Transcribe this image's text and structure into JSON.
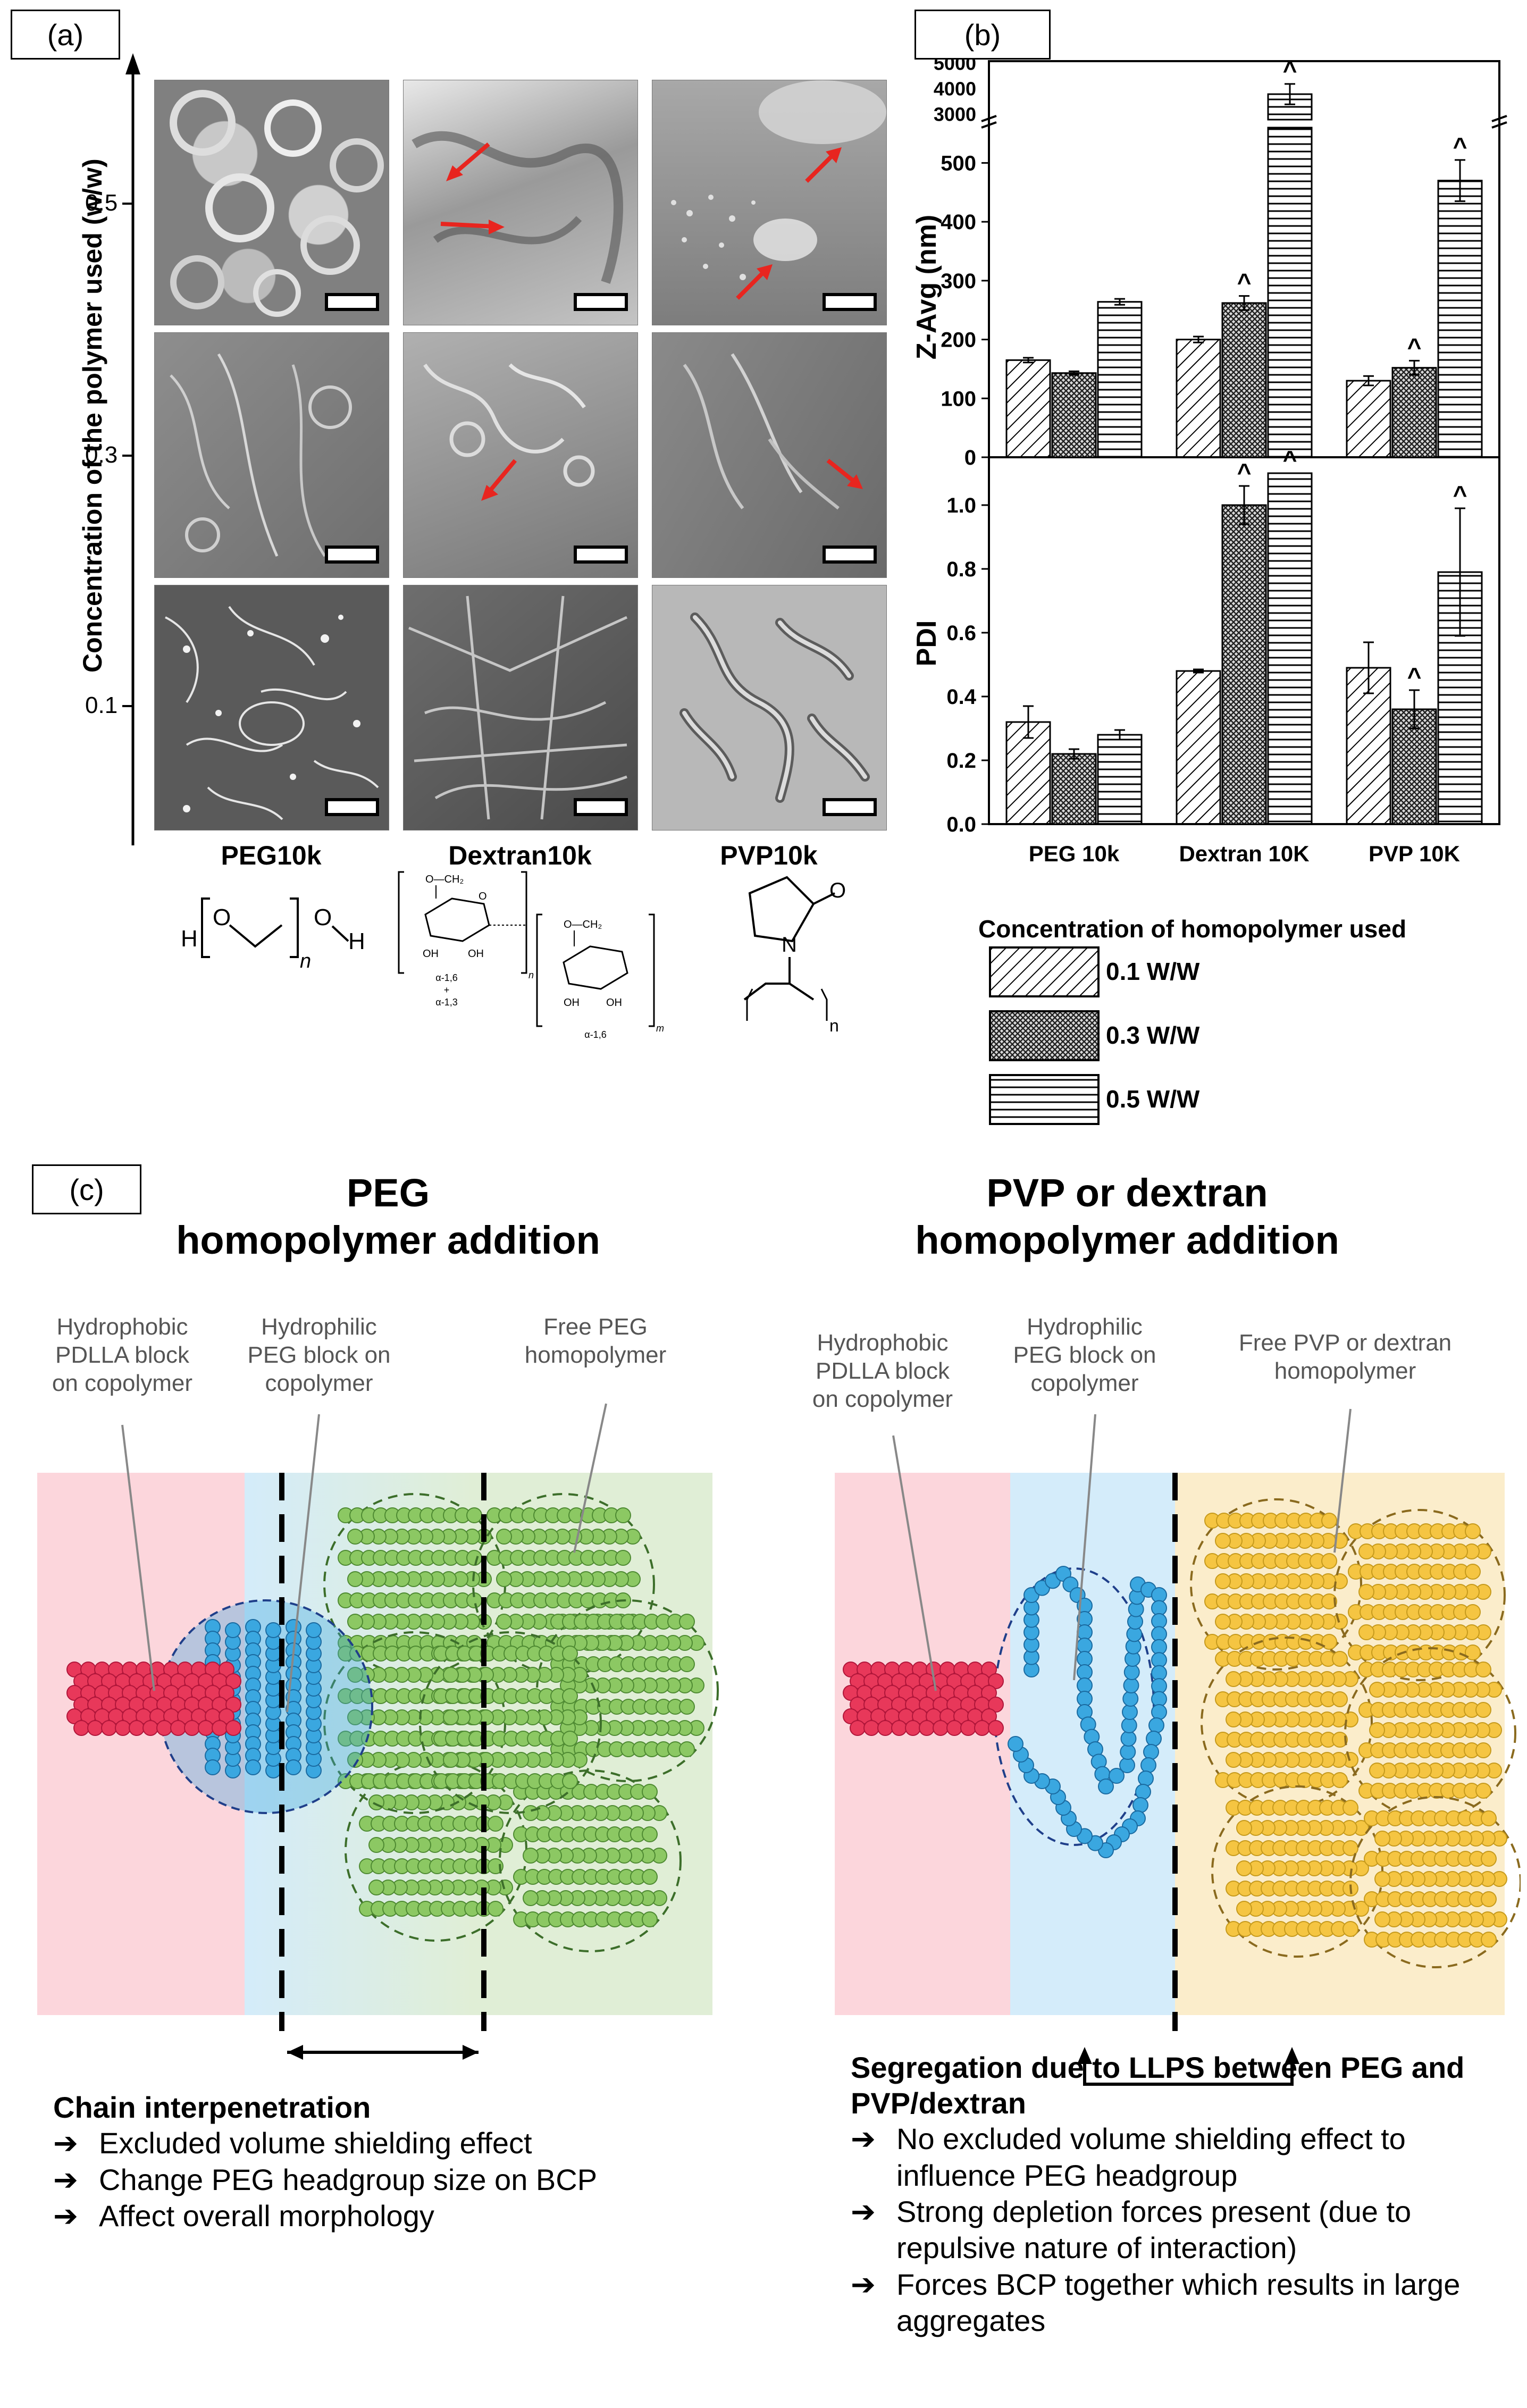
{
  "panel_a": {
    "label": "(a)",
    "y_axis_label": "Concentration of the polymer used (w/w)",
    "ticks": [
      "0.5",
      "0.3",
      "0.1"
    ],
    "columns": [
      "PEG10k",
      "Dextran10k",
      "PVP10k"
    ],
    "structures": {
      "peg": {
        "h1": "H",
        "o1": "O",
        "o2": "O",
        "h2": "H",
        "n": "n"
      },
      "dextran": {
        "ch2a": "O—CH₂",
        "oh1": "OH",
        "oh2": "OH",
        "o": "O",
        "n": "n",
        "link1": "α-1,6",
        "plus": "+",
        "link2": "α-1,3",
        "ch2b": "O—CH₂",
        "oh3": "OH",
        "oh4": "OH",
        "m": "m",
        "link3": "α-1,6"
      },
      "pvp": {
        "n_atom": "N",
        "o": "O",
        "n": "n"
      }
    }
  },
  "panel_b": {
    "label": "(b)",
    "chart_data": [
      {
        "type": "bar",
        "title": "",
        "ylabel": "Z-Avg (nm)",
        "categories": [
          "PEG 10k",
          "Dextran 10K",
          "PVP 10K"
        ],
        "yticks_lower": [
          "0",
          "100",
          "200",
          "300",
          "400",
          "500"
        ],
        "yticks_upper": [
          "3000",
          "4000",
          "5000"
        ],
        "ylim_lower": [
          0,
          560
        ],
        "ylim_upper": [
          2800,
          5200
        ],
        "series": [
          {
            "name": "0.1 W/W",
            "values": [
              165,
              200,
              130
            ],
            "errors": [
              4,
              5,
              8
            ]
          },
          {
            "name": "0.3 W/W",
            "values": [
              143,
              262,
              152
            ],
            "errors": [
              3,
              12,
              12
            ]
          },
          {
            "name": "0.5 W/W",
            "values": [
              264,
              3800,
              470
            ],
            "errors": [
              5,
              400,
              35
            ]
          }
        ],
        "significance": [
          [
            false,
            false,
            false
          ],
          [
            false,
            true,
            true
          ],
          [
            false,
            true,
            true
          ]
        ],
        "sig_marker": "^"
      },
      {
        "type": "bar",
        "title": "",
        "ylabel": "PDI",
        "xlabel": "",
        "categories": [
          "PEG 10k",
          "Dextran 10K",
          "PVP 10K"
        ],
        "yticks": [
          "0.0",
          "0.2",
          "0.4",
          "0.6",
          "0.8",
          "1.0"
        ],
        "ylim": [
          0,
          1.15
        ],
        "series": [
          {
            "name": "0.1 W/W",
            "values": [
              0.32,
              0.48,
              0.49
            ],
            "errors": [
              0.05,
              0.005,
              0.08
            ]
          },
          {
            "name": "0.3 W/W",
            "values": [
              0.22,
              1.0,
              0.36
            ],
            "errors": [
              0.015,
              0.06,
              0.06
            ]
          },
          {
            "name": "0.5 W/W",
            "values": [
              0.28,
              1.1,
              0.79
            ],
            "errors": [
              0.015,
              0.0,
              0.2
            ]
          }
        ],
        "significance": [
          [
            false,
            false,
            false
          ],
          [
            false,
            true,
            true
          ],
          [
            false,
            true,
            true
          ]
        ],
        "sig_marker": "^"
      }
    ],
    "legend_title": "Concentration of homopolymer used",
    "legend": [
      "0.1 W/W",
      "0.3 W/W",
      "0.5 W/W"
    ]
  },
  "panel_c": {
    "label": "(c)",
    "left": {
      "title_line1": "PEG",
      "title_line2": "homopolymer  addition",
      "ann1": [
        "Hydrophobic",
        "PDLLA block",
        "on copolymer"
      ],
      "ann2": [
        "Hydrophilic",
        "PEG block on",
        "copolymer"
      ],
      "ann3": [
        "Free PEG",
        "homopolymer"
      ],
      "para_title": "Chain interpenetration",
      "bullets": [
        "Excluded volume shielding effect",
        "Change PEG headgroup size on BCP",
        "Affect overall morphology"
      ]
    },
    "right": {
      "title_line1": "PVP or dextran",
      "title_line2": "homopolymer  addition",
      "ann1": [
        "Hydrophobic",
        "PDLLA block",
        "on copolymer"
      ],
      "ann2": [
        "Hydrophilic",
        "PEG block on",
        "copolymer"
      ],
      "ann3": [
        "Free PVP or dextran",
        "homopolymer"
      ],
      "para_title": "Segregation due to LLPS between PEG and PVP/dextran",
      "bullets": [
        "No excluded volume shielding effect to influence PEG headgroup",
        "Strong depletion forces present (due to repulsive nature of interaction)",
        "Forces BCP together which results in large aggregates"
      ]
    },
    "arrow_symbol": "➔",
    "colors": {
      "pdlla": "#e8385a",
      "peg_block": "#3aa7e0",
      "free_peg": "#8cc863",
      "free_pvp": "#f5c542",
      "bg_pink": "#fcd6dc",
      "bg_blue": "#d4ecfa",
      "bg_green": "#e0eed6",
      "bg_yellow": "#fbedcb"
    }
  }
}
